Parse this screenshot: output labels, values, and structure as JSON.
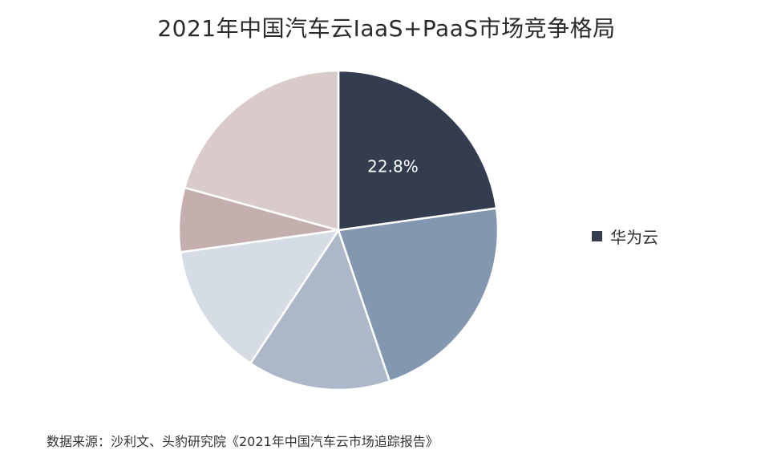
{
  "chart_data": {
    "type": "pie",
    "title": "2021年中国汽车云IaaS+PaaS市场竞争格局",
    "slices": [
      {
        "name": "华为云",
        "value": 22.8,
        "color": "#333d4f",
        "label": "22.8%"
      },
      {
        "name": "",
        "value": 22.0,
        "color": "#8497b0",
        "label": ""
      },
      {
        "name": "",
        "value": 14.5,
        "color": "#acb8ca",
        "label": ""
      },
      {
        "name": "",
        "value": 13.5,
        "color": "#d6dce5",
        "label": ""
      },
      {
        "name": "",
        "value": 6.5,
        "color": "#c4aeae",
        "label": ""
      },
      {
        "name": "",
        "value": 20.7,
        "color": "#d9cbca",
        "label": ""
      }
    ],
    "legend": {
      "placement": "right",
      "entries": [
        {
          "name": "华为云",
          "color": "#333d4f"
        }
      ]
    }
  },
  "source": "数据来源：沙利文、头豹研究院《2021年中国汽车云市场追踪报告》"
}
